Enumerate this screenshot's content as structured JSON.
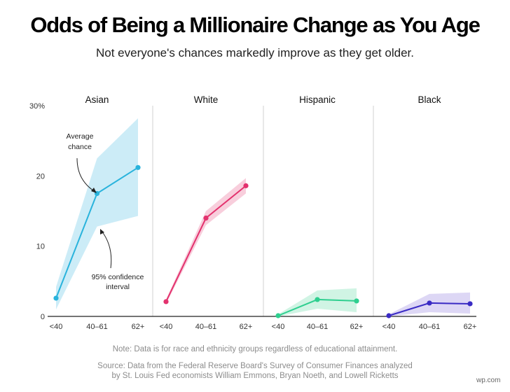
{
  "header": {
    "title": "Odds of Being a Millionaire Change as You Age",
    "subtitle": "Not everyone's chances markedly improve as they get older."
  },
  "footer": {
    "note": "Note: Data is for race and ethnicity groups regardless of educational attainment.",
    "source_line1": "Source: Data from the Federal Reserve Board's Survey of Consumer Finances analyzed",
    "source_line2": "by St. Louis Fed economists William Emmons, Bryan Noeth, and Lowell Ricketts",
    "credit": "wp.com"
  },
  "annotations": {
    "average": [
      "Average",
      "chance"
    ],
    "ci": [
      "95% confidence",
      "interval"
    ]
  },
  "chart_data": {
    "type": "line",
    "categories": [
      "<40",
      "40–61",
      "62+"
    ],
    "ylim": [
      0,
      30
    ],
    "yticks": [
      0,
      10,
      20,
      30
    ],
    "ytick_labels": [
      "0",
      "10",
      "20",
      "30%"
    ],
    "grid": false,
    "series": [
      {
        "name": "Asian",
        "color": "#29b3dc",
        "band_color": "#c3e9f6",
        "values": [
          2.6,
          17.5,
          21.2
        ],
        "lower": [
          1.0,
          12.8,
          14.3
        ],
        "upper": [
          4.2,
          22.5,
          28.2
        ]
      },
      {
        "name": "White",
        "color": "#e3326e",
        "band_color": "#f7c6d6",
        "values": [
          2.1,
          14.0,
          18.6
        ],
        "lower": [
          1.8,
          13.0,
          17.5
        ],
        "upper": [
          2.4,
          15.0,
          19.7
        ]
      },
      {
        "name": "Hispanic",
        "color": "#2ecf8f",
        "band_color": "#c8f2df",
        "values": [
          0.1,
          2.4,
          2.2
        ],
        "lower": [
          0.0,
          1.1,
          0.6
        ],
        "upper": [
          0.3,
          3.7,
          4.0
        ]
      },
      {
        "name": "Black",
        "color": "#3a2bc4",
        "band_color": "#d7d0f3",
        "values": [
          0.1,
          1.9,
          1.8
        ],
        "lower": [
          0.0,
          0.6,
          0.4
        ],
        "upper": [
          0.3,
          3.2,
          3.4
        ]
      }
    ]
  }
}
